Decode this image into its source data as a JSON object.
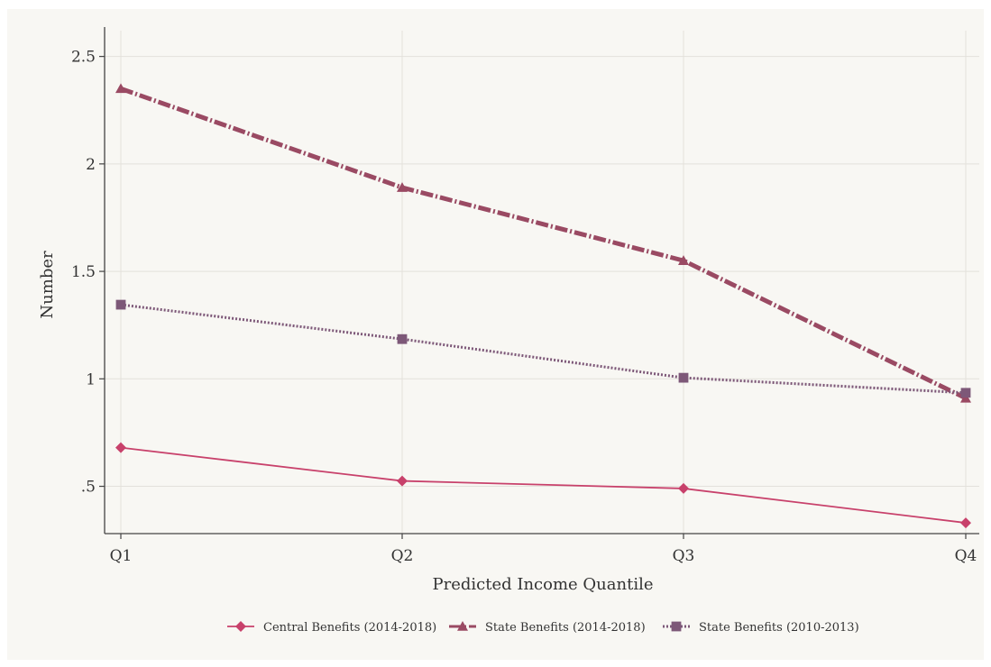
{
  "chart_data": {
    "type": "line",
    "title": "",
    "xlabel": "Predicted Income Quantile",
    "ylabel": "Number",
    "categories": [
      "Q1",
      "Q2",
      "Q3",
      "Q4"
    ],
    "ylim": [
      0.28,
      2.62
    ],
    "yticks": [
      0.5,
      1,
      1.5,
      2,
      2.5
    ],
    "ytick_labels": [
      ".5",
      "1",
      "1.5",
      "2",
      "2.5"
    ],
    "grid": true,
    "legend_position": "bottom",
    "series": [
      {
        "name": "Central Benefits (2014-2018)",
        "values": [
          0.68,
          0.525,
          0.49,
          0.33
        ],
        "color": "#c8416b",
        "marker": "diamond",
        "line_style": "solid"
      },
      {
        "name": "State Benefits (2014-2018)",
        "values": [
          2.35,
          1.89,
          1.55,
          0.91
        ],
        "color": "#9a4a63",
        "marker": "triangle",
        "line_style": "dash-dot"
      },
      {
        "name": "State Benefits (2010-2013)",
        "values": [
          1.345,
          1.185,
          1.005,
          0.935
        ],
        "color": "#7d5878",
        "marker": "square",
        "line_style": "dotted"
      }
    ],
    "colors": {
      "background": "#f8f7f3",
      "grid": "#e3e1db",
      "axis": "#444444"
    }
  }
}
